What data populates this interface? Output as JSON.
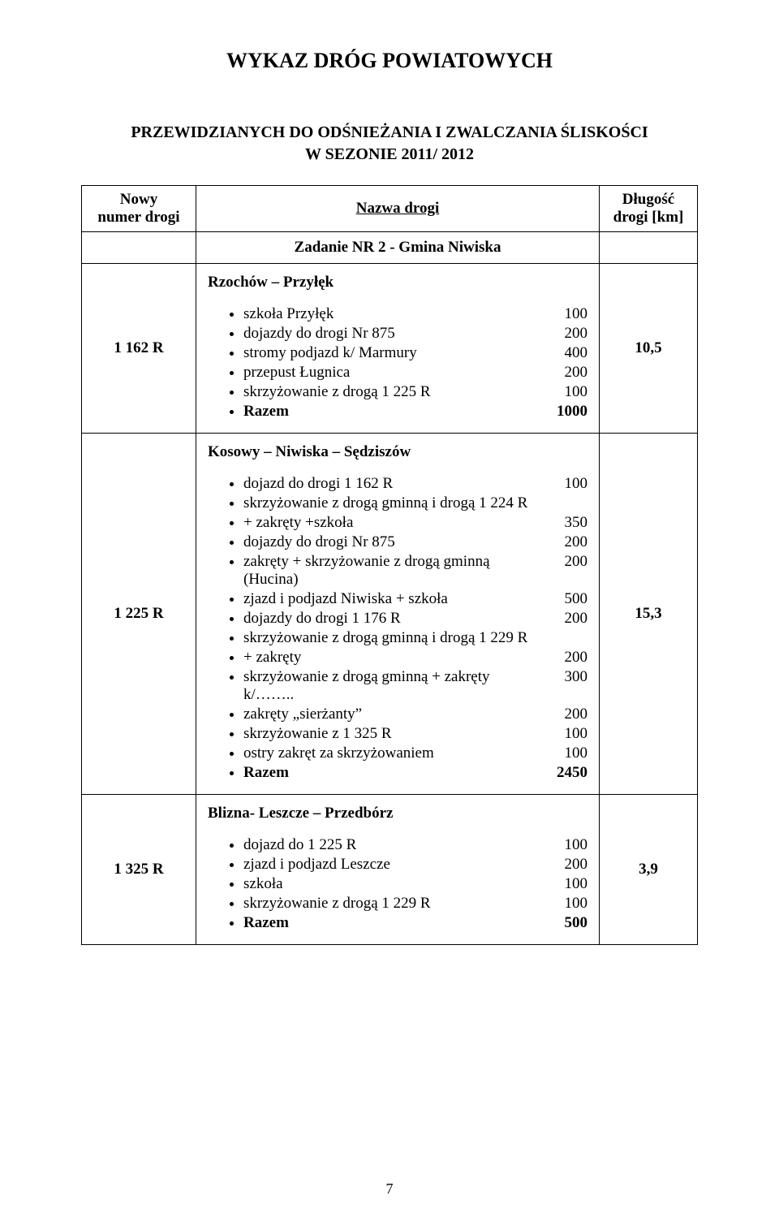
{
  "title": "WYKAZ DRÓG POWIATOWYCH",
  "subtitle_line1": "PRZEWIDZIANYCH DO ODŚNIEŻANIA I ZWALCZANIA ŚLISKOŚCI",
  "subtitle_line2": "W SEZONIE 2011/ 2012",
  "header": {
    "col_num_line1": "Nowy",
    "col_num_line2": "numer drogi",
    "col_name": "Nazwa drogi",
    "col_len_line1": "Długość",
    "col_len_line2": "drogi [km]"
  },
  "task_label": "Zadanie NR 2 - Gmina Niwiska",
  "roads": [
    {
      "number": "1  162 R",
      "length": "10,5",
      "section": "Rzochów – Przyłęk",
      "items": [
        {
          "label": "szkoła Przyłęk",
          "value": "100"
        },
        {
          "label": "dojazdy do drogi Nr 875",
          "value": "200"
        },
        {
          "label": "stromy podjazd k/ Marmury",
          "value": "400"
        },
        {
          "label": "przepust Ługnica",
          "value": "200"
        },
        {
          "label": "skrzyżowanie z drogą 1 225 R",
          "value": "100"
        },
        {
          "label": "Razem",
          "value": "1000",
          "razem": true
        }
      ]
    },
    {
      "number": "1  225 R",
      "length": "15,3",
      "section": "Kosowy – Niwiska – Sędziszów",
      "items": [
        {
          "label": "dojazd do drogi 1 162 R",
          "value": "100"
        },
        {
          "label": "skrzyżowanie z drogą gminną i drogą 1 224 R",
          "value": ""
        },
        {
          "label": "+ zakręty +szkoła",
          "value": "350"
        },
        {
          "label": "dojazdy do drogi Nr 875",
          "value": "200"
        },
        {
          "label": "zakręty + skrzyżowanie z drogą  gminną (Hucina)",
          "value": "200"
        },
        {
          "label": "zjazd i podjazd Niwiska + szkoła",
          "value": "500"
        },
        {
          "label": "dojazdy do drogi 1 176 R",
          "value": "200"
        },
        {
          "label": "skrzyżowanie z drogą gminną i drogą 1 229 R",
          "value": ""
        },
        {
          "label": "+ zakręty",
          "value": "200"
        },
        {
          "label": "skrzyżowanie z drogą gminną + zakręty k/……..",
          "value": "300"
        },
        {
          "label": " zakręty „sierżanty”",
          "value": "200"
        },
        {
          "label": "skrzyżowanie z 1 325 R",
          "value": "100"
        },
        {
          "label": "ostry zakręt za skrzyżowaniem",
          "value": "100"
        },
        {
          "label": "Razem",
          "value": "2450",
          "razem": true
        }
      ]
    },
    {
      "number": "1  325 R",
      "length": "3,9",
      "section": "Blizna- Leszcze – Przedbórz",
      "items": [
        {
          "label": "dojazd do 1 225 R",
          "value": "100"
        },
        {
          "label": "zjazd i podjazd Leszcze",
          "value": "200"
        },
        {
          "label": "szkoła",
          "value": "100"
        },
        {
          "label": "skrzyżowanie z drogą 1 229 R",
          "value": "100"
        },
        {
          "label": "Razem",
          "value": "500",
          "razem": true
        }
      ]
    }
  ],
  "page_number": "7"
}
